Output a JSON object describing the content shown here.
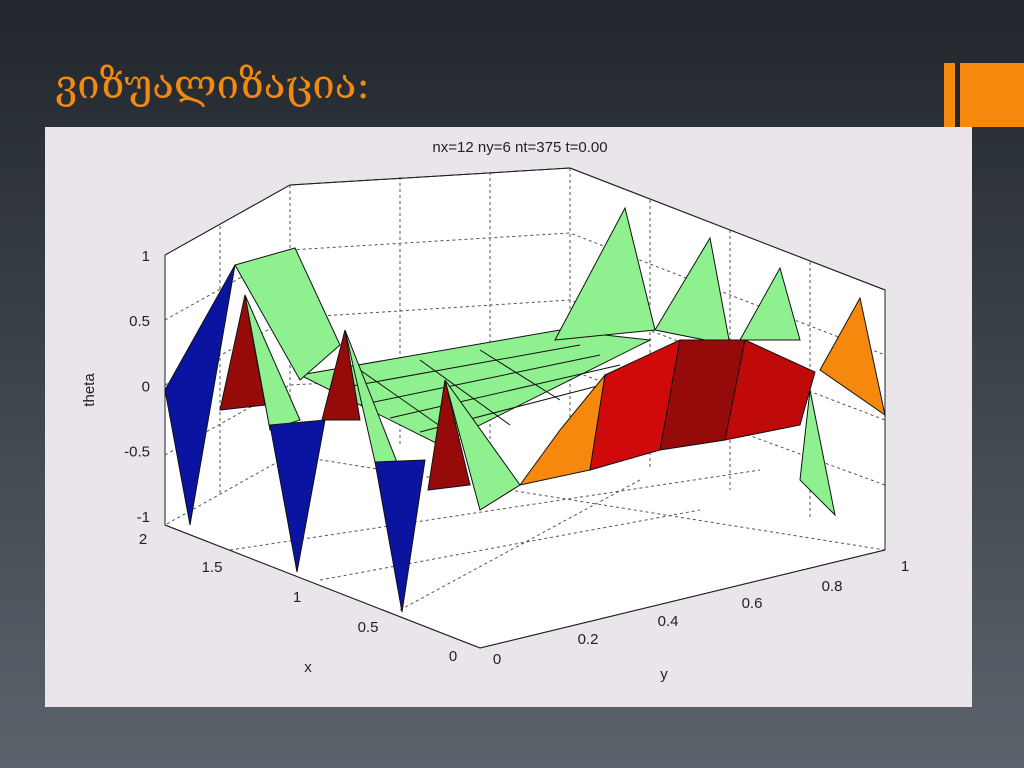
{
  "slide": {
    "title": "ვიზუალიზაცია:"
  },
  "figure": {
    "title": "nx=12 ny=6 nt=375 t=0.00",
    "zlabel": "theta",
    "xlabel": "x",
    "ylabel": "y",
    "zticks": [
      "1",
      "0.5",
      "0",
      "-0.5",
      "-1"
    ],
    "xticks": [
      "2",
      "1.5",
      "1",
      "0.5",
      "0"
    ],
    "yticks": [
      "0",
      "0.2",
      "0.4",
      "0.6",
      "0.8",
      "1"
    ]
  }
}
